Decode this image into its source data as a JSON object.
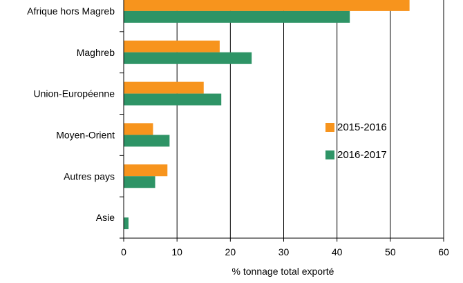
{
  "chart_data": {
    "type": "bar",
    "orientation": "horizontal",
    "categories": [
      "Afrique hors Magreb",
      "Maghreb",
      "Union-Européenne",
      "Moyen-Orient",
      "Autres pays",
      "Asie"
    ],
    "series": [
      {
        "name": "2015-2016",
        "color": "#F7941D",
        "values": [
          53.6,
          18.0,
          15.0,
          5.5,
          8.2,
          0
        ]
      },
      {
        "name": "2016-2017",
        "color": "#2E9466",
        "values": [
          42.4,
          24.0,
          18.3,
          8.6,
          5.9,
          0.9
        ]
      }
    ],
    "xlabel": "% tonnage total exporté",
    "xlim": [
      0,
      60
    ],
    "xticks": [
      0,
      10,
      20,
      30,
      40,
      50,
      60
    ],
    "grid": "vertical",
    "legend_position": "right"
  }
}
